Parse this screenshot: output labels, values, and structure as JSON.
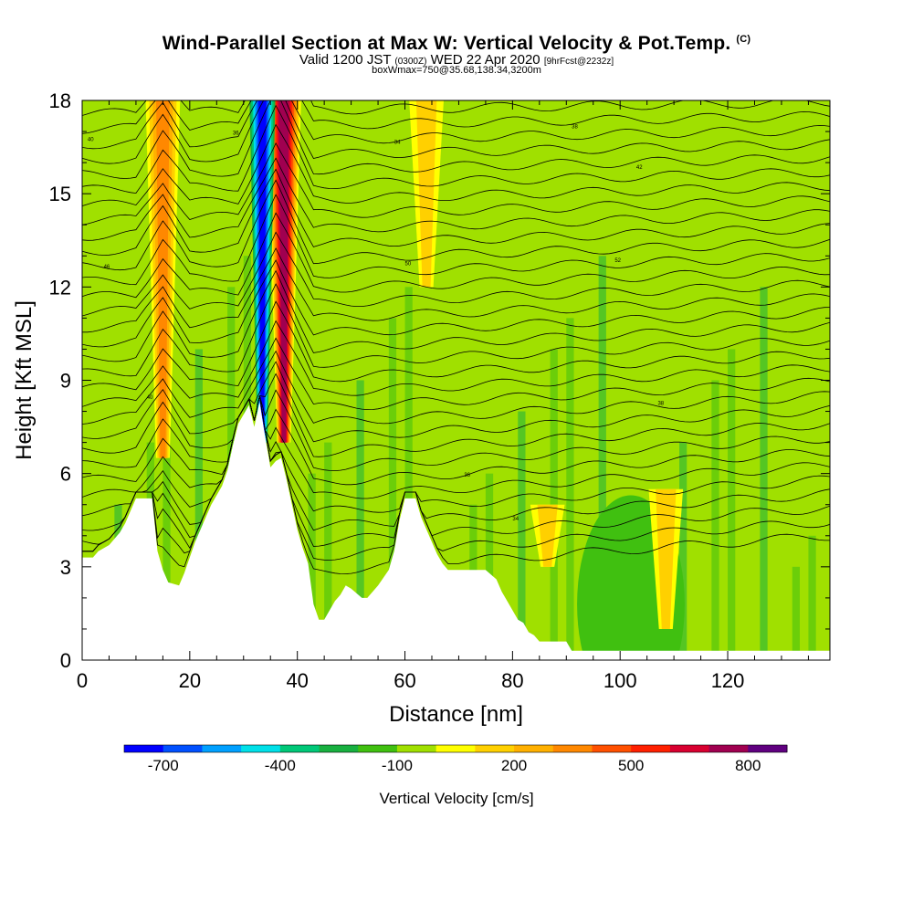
{
  "chart_data": {
    "type": "heatmap",
    "title": "Wind-Parallel Section at Max W: Vertical Velocity & Pot.Temp.",
    "title_mark": "(C)",
    "subtitle_valid": "Valid 1200 JST",
    "subtitle_utc": "(0300Z)",
    "subtitle_date": "WED 22 Apr 2020",
    "subtitle_fcst": "[9hrFcst@2232z]",
    "subtitle_box": "boxWmax=750@35.68,138.34,3200m",
    "xlabel": "Distance [nm]",
    "ylabel": "Height [Kft MSL]",
    "xlim": [
      0,
      139
    ],
    "ylim": [
      0,
      18
    ],
    "x_ticks": [
      "0",
      "20",
      "40",
      "60",
      "80",
      "100",
      "120"
    ],
    "y_ticks": [
      "0",
      "3",
      "6",
      "9",
      "12",
      "15",
      "18"
    ],
    "colorbar": {
      "label": "Vertical Velocity [cm/s]",
      "ticks": [
        "-700",
        "-400",
        "-100",
        "200",
        "500",
        "800"
      ],
      "bins": [
        -750,
        -650,
        -550,
        -450,
        -350,
        -250,
        -150,
        -50,
        50,
        150,
        250,
        350,
        450,
        550,
        650,
        750,
        850,
        950
      ],
      "colors": [
        "#0000ff",
        "#0050ff",
        "#00a0ff",
        "#00e0e8",
        "#00c878",
        "#18b040",
        "#40c010",
        "#a0e000",
        "#ffff00",
        "#ffd000",
        "#ffb000",
        "#ff8800",
        "#ff5000",
        "#ff2000",
        "#d80030",
        "#a00050",
        "#600080"
      ]
    },
    "terrain_kft": [
      [
        0,
        3.3
      ],
      [
        2,
        3.3
      ],
      [
        3,
        3.5
      ],
      [
        5,
        3.7
      ],
      [
        7,
        4.1
      ],
      [
        8,
        4.4
      ],
      [
        9,
        4.8
      ],
      [
        10,
        5.2
      ],
      [
        13,
        5.2
      ],
      [
        14,
        3.5
      ],
      [
        15,
        2.9
      ],
      [
        16,
        2.5
      ],
      [
        18,
        2.4
      ],
      [
        19,
        2.8
      ],
      [
        20,
        3.3
      ],
      [
        21,
        3.8
      ],
      [
        22,
        4.2
      ],
      [
        23,
        4.6
      ],
      [
        24,
        5.0
      ],
      [
        25,
        5.3
      ],
      [
        26,
        5.6
      ],
      [
        27,
        6.1
      ],
      [
        28,
        6.9
      ],
      [
        29,
        7.6
      ],
      [
        31,
        8.2
      ],
      [
        32,
        7.5
      ],
      [
        33,
        8.3
      ],
      [
        34,
        7.2
      ],
      [
        35,
        6.2
      ],
      [
        36,
        6.4
      ],
      [
        37,
        6.5
      ],
      [
        38,
        5.8
      ],
      [
        39,
        5.0
      ],
      [
        40,
        4.2
      ],
      [
        41,
        3.6
      ],
      [
        42,
        3.1
      ],
      [
        43,
        1.8
      ],
      [
        44,
        1.3
      ],
      [
        45,
        1.3
      ],
      [
        46,
        1.6
      ],
      [
        47,
        1.9
      ],
      [
        48,
        2.1
      ],
      [
        49,
        2.4
      ],
      [
        50,
        2.3
      ],
      [
        52,
        2.0
      ],
      [
        53,
        2.0
      ],
      [
        55,
        2.4
      ],
      [
        57,
        2.9
      ],
      [
        58,
        3.5
      ],
      [
        59,
        4.5
      ],
      [
        60,
        5.2
      ],
      [
        62,
        5.2
      ],
      [
        63,
        4.6
      ],
      [
        64,
        4.2
      ],
      [
        65,
        3.8
      ],
      [
        66,
        3.4
      ],
      [
        67,
        3.1
      ],
      [
        68,
        2.9
      ],
      [
        75,
        2.9
      ],
      [
        77,
        2.6
      ],
      [
        78,
        2.2
      ],
      [
        79,
        1.9
      ],
      [
        80,
        1.6
      ],
      [
        81,
        1.3
      ],
      [
        82,
        1.2
      ],
      [
        83,
        0.9
      ],
      [
        84,
        0.8
      ],
      [
        85,
        0.6
      ],
      [
        90,
        0.6
      ],
      [
        91,
        0.3
      ],
      [
        139,
        0.3
      ]
    ],
    "updraft_cores": [
      {
        "x": 37.5,
        "y_bottom": 7.0,
        "y_top": 18.0,
        "w_max": 750
      },
      {
        "x": 15.0,
        "y_bottom": 6.5,
        "y_top": 18.0,
        "w_max": 350
      },
      {
        "x": 64.0,
        "y_bottom": 12.0,
        "y_top": 18.0,
        "w_max": 220
      },
      {
        "x": 86.5,
        "y_bottom": 3.0,
        "y_top": 5.0,
        "w_max": 220
      },
      {
        "x": 108.5,
        "y_bottom": 1.0,
        "y_top": 5.5,
        "w_max": 220
      }
    ],
    "downdraft_cores": [
      {
        "x": 33.5,
        "y_bottom": 7.0,
        "y_top": 18.0,
        "w_min": -700
      }
    ],
    "theta_contour_labels": [
      "40",
      "36",
      "34",
      "38",
      "42",
      "46",
      "50",
      "52"
    ]
  }
}
